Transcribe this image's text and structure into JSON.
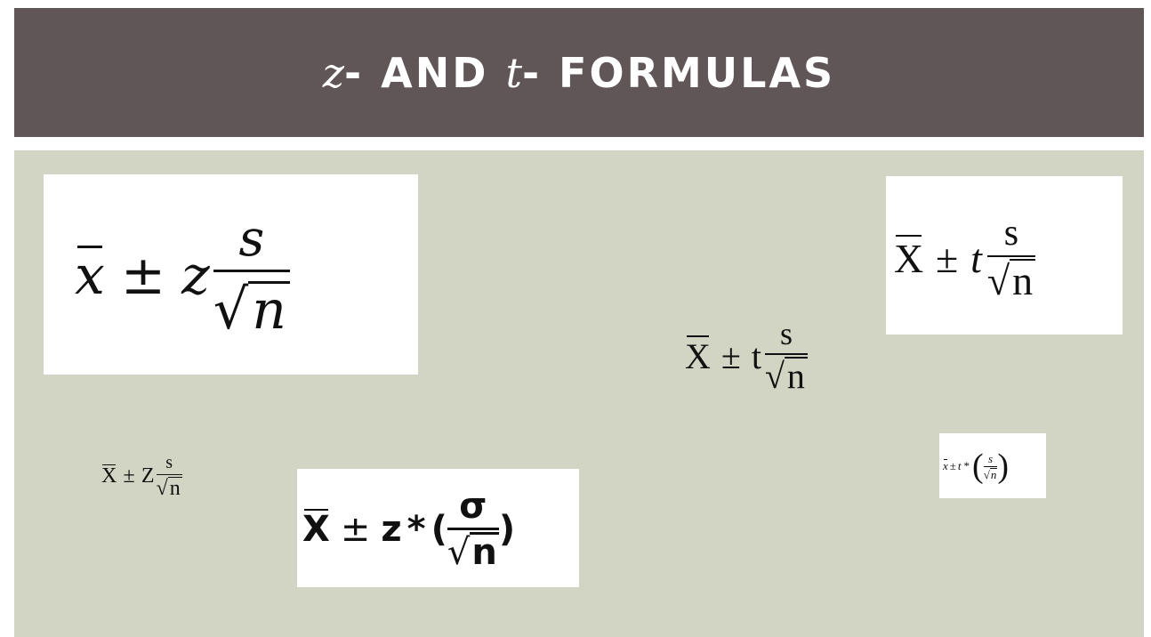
{
  "slide": {
    "title": {
      "var1": "z",
      "part1": "- AND ",
      "var2": "t",
      "part2": "- FORMULAS"
    }
  },
  "formulas": {
    "f1": {
      "mean": "x",
      "pm": "±",
      "crit": "z",
      "num": "s",
      "root": "√",
      "den": "n"
    },
    "f2": {
      "mean": "X",
      "pm": "±",
      "crit": "Z",
      "num": "s",
      "root": "√",
      "den": "n"
    },
    "f3": {
      "mean": "X",
      "pm": "±",
      "crit": "z",
      "star": "*",
      "lparen": "(",
      "num": "σ",
      "root": "√",
      "den": "n",
      "rparen": ")"
    },
    "f4": {
      "mean": "X",
      "pm": "±",
      "crit": "t",
      "num": "s",
      "root": "√",
      "den": "n"
    },
    "f5": {
      "mean": "X",
      "pm": "±",
      "crit": "t",
      "num": "s",
      "root": "√",
      "den": "n"
    },
    "f6": {
      "mean": "x",
      "pm": "±",
      "crit": "t",
      "star": "*",
      "lparen": "(",
      "num": "s",
      "root": "√",
      "den": "n",
      "rparen": ")"
    }
  },
  "colors": {
    "title_bar": "#605557",
    "content_bg": "#d2d5c3",
    "formula_box": "#ffffff"
  }
}
